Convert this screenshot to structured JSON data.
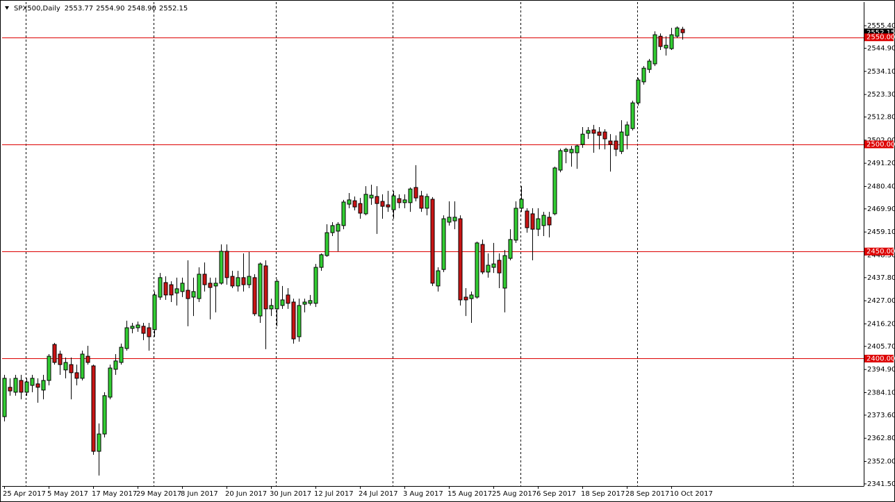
{
  "chart_data": {
    "type": "candlestick",
    "title": "SPX500,Daily",
    "ohlc_text": [
      "2553.77",
      "2554.90",
      "2548.90",
      "2552.15"
    ],
    "categories": [
      "25 Apr 2017",
      null,
      null,
      null,
      null,
      null,
      null,
      null,
      "5 May 2017",
      null,
      null,
      null,
      null,
      null,
      null,
      null,
      "17 May 2017",
      null,
      null,
      null,
      null,
      null,
      null,
      null,
      "29 May 2017",
      null,
      null,
      null,
      null,
      null,
      null,
      null,
      "8 Jun 2017",
      null,
      null,
      null,
      null,
      null,
      null,
      null,
      "20 Jun 2017",
      null,
      null,
      null,
      null,
      null,
      null,
      null,
      "30 Jun 2017",
      null,
      null,
      null,
      null,
      null,
      null,
      null,
      "12 Jul 2017",
      null,
      null,
      null,
      null,
      null,
      null,
      null,
      "24 Jul 2017",
      null,
      null,
      null,
      null,
      null,
      null,
      null,
      "3 Aug 2017",
      null,
      null,
      null,
      null,
      null,
      null,
      null,
      "15 Aug 2017",
      null,
      null,
      null,
      null,
      null,
      null,
      null,
      "25 Aug 2017",
      null,
      null,
      null,
      null,
      null,
      null,
      null,
      "6 Sep 2017",
      null,
      null,
      null,
      null,
      null,
      null,
      null,
      "18 Sep 2017",
      null,
      null,
      null,
      null,
      null,
      null,
      null,
      "28 Sep 2017",
      null,
      null,
      null,
      null,
      null,
      null,
      null,
      "10 Oct 2017",
      null,
      null
    ],
    "open": [
      2372.9,
      2386.6,
      2384.3,
      2389.8,
      2384.3,
      2387.5,
      2388.2,
      2385.3,
      2389.8,
      2406.6,
      2402.1,
      2394.7,
      2397.2,
      2393.4,
      2390.8,
      2401.1,
      2396.6,
      2356.7,
      2364.8,
      2382.0,
      2395.0,
      2398.2,
      2404.7,
      2414.1,
      2414.4,
      2415.1,
      2414.4,
      2413.5,
      2428.7,
      2435.5,
      2434.5,
      2430.6,
      2431.3,
      2431.9,
      2428.7,
      2428.0,
      2439.4,
      2435.2,
      2433.9,
      2435.2,
      2450.1,
      2438.4,
      2433.9,
      2437.8,
      2434.5,
      2437.8,
      2419.9,
      2443.3,
      2423.2,
      2423.2,
      2424.8,
      2429.7,
      2426.4,
      2410.2,
      2425.4,
      2425.8,
      2425.8,
      2442.6,
      2448.1,
      2458.8,
      2459.5,
      2462.1,
      2472.1,
      2473.7,
      2472.4,
      2467.6,
      2475.0,
      2475.7,
      2473.4,
      2471.8,
      2469.5,
      2474.7,
      2472.8,
      2472.8,
      2479.9,
      2476.0,
      2470.2,
      2474.4,
      2433.9,
      2441.6,
      2463.7,
      2464.3,
      2465.3,
      2428.7,
      2428.0,
      2428.7,
      2453.3,
      2440.4,
      2442.6,
      2445.9,
      2432.9,
      2446.8,
      2455.3,
      2470.2,
      2468.9,
      2467.6,
      2460.4,
      2462.1,
      2466.0,
      2467.6,
      2488.0,
      2496.7,
      2496.1,
      2496.1,
      2500.0,
      2505.2,
      2506.8,
      2505.8,
      2505.8,
      2501.6,
      2501.6,
      2496.7,
      2504.2,
      2507.4,
      2519.4,
      2529.2,
      2535.0,
      2537.6,
      2550.5,
      2545.0,
      2544.7,
      2550.5,
      2553.77
    ],
    "high": [
      2392.4,
      2390.8,
      2392.4,
      2392.4,
      2390.8,
      2392.4,
      2390.8,
      2392.4,
      2402.1,
      2407.3,
      2403.7,
      2400.5,
      2400.5,
      2397.2,
      2403.7,
      2406.0,
      2397.2,
      2369.7,
      2384.3,
      2397.2,
      2402.1,
      2407.0,
      2417.7,
      2416.7,
      2417.3,
      2416.7,
      2416.7,
      2431.3,
      2440.0,
      2438.4,
      2436.1,
      2437.8,
      2437.8,
      2445.9,
      2437.8,
      2442.6,
      2444.9,
      2437.8,
      2437.8,
      2453.3,
      2453.3,
      2441.0,
      2441.0,
      2449.1,
      2449.8,
      2439.4,
      2444.9,
      2445.9,
      2428.0,
      2437.1,
      2433.9,
      2432.9,
      2428.0,
      2428.0,
      2428.0,
      2429.7,
      2444.2,
      2449.1,
      2462.7,
      2463.7,
      2463.7,
      2474.1,
      2477.3,
      2475.7,
      2475.0,
      2480.5,
      2481.2,
      2480.5,
      2476.7,
      2478.3,
      2478.3,
      2476.7,
      2476.7,
      2479.9,
      2490.3,
      2478.3,
      2477.0,
      2475.4,
      2442.6,
      2466.9,
      2473.4,
      2473.4,
      2466.9,
      2432.9,
      2431.3,
      2454.6,
      2455.6,
      2449.1,
      2454.0,
      2449.1,
      2450.7,
      2460.4,
      2473.4,
      2480.5,
      2470.2,
      2470.2,
      2470.2,
      2468.5,
      2468.5,
      2489.6,
      2498.0,
      2498.4,
      2499.3,
      2500.0,
      2508.1,
      2508.1,
      2509.1,
      2508.1,
      2507.1,
      2504.8,
      2504.2,
      2511.3,
      2510.7,
      2520.4,
      2531.1,
      2536.6,
      2539.9,
      2552.8,
      2551.8,
      2550.5,
      2554.4,
      2555.1,
      2554.9
    ],
    "low": [
      2370.7,
      2382.7,
      2382.7,
      2381.0,
      2382.7,
      2384.3,
      2379.4,
      2381.0,
      2387.5,
      2397.2,
      2392.4,
      2390.8,
      2381.0,
      2387.5,
      2389.8,
      2397.2,
      2355.1,
      2345.4,
      2363.2,
      2381.0,
      2392.4,
      2397.2,
      2403.7,
      2411.8,
      2412.5,
      2408.6,
      2403.7,
      2410.2,
      2427.4,
      2427.4,
      2426.4,
      2424.8,
      2428.7,
      2415.1,
      2419.9,
      2426.4,
      2431.3,
      2418.3,
      2421.6,
      2434.5,
      2434.5,
      2432.9,
      2431.3,
      2431.3,
      2432.9,
      2419.9,
      2416.7,
      2404.4,
      2419.9,
      2415.1,
      2423.2,
      2423.2,
      2407.0,
      2407.9,
      2421.6,
      2424.8,
      2424.1,
      2441.0,
      2447.5,
      2457.2,
      2450.1,
      2460.4,
      2470.2,
      2469.2,
      2465.3,
      2466.9,
      2471.8,
      2458.2,
      2465.3,
      2468.5,
      2465.3,
      2470.2,
      2470.2,
      2468.5,
      2473.4,
      2468.5,
      2466.9,
      2433.9,
      2431.3,
      2440.4,
      2462.1,
      2460.4,
      2424.8,
      2419.9,
      2416.7,
      2428.0,
      2439.4,
      2437.8,
      2440.0,
      2432.9,
      2421.6,
      2445.9,
      2454.0,
      2468.5,
      2458.8,
      2445.9,
      2457.2,
      2457.2,
      2456.6,
      2466.9,
      2487.0,
      2491.2,
      2489.6,
      2488.6,
      2498.4,
      2502.6,
      2496.1,
      2497.7,
      2497.7,
      2487.3,
      2494.5,
      2495.5,
      2497.7,
      2506.5,
      2518.1,
      2527.9,
      2533.4,
      2536.6,
      2544.1,
      2541.5,
      2544.1,
      2549.6,
      2548.9
    ],
    "close": [
      2390.8,
      2384.9,
      2390.8,
      2384.3,
      2389.1,
      2390.8,
      2386.6,
      2389.8,
      2401.1,
      2398.2,
      2397.2,
      2398.2,
      2393.4,
      2390.8,
      2402.1,
      2398.2,
      2356.7,
      2364.8,
      2382.7,
      2395.6,
      2398.9,
      2405.3,
      2414.4,
      2415.1,
      2415.7,
      2411.8,
      2410.2,
      2429.7,
      2437.8,
      2429.7,
      2429.7,
      2432.6,
      2435.2,
      2428.0,
      2431.3,
      2439.4,
      2434.5,
      2433.2,
      2435.2,
      2450.1,
      2437.8,
      2433.9,
      2437.8,
      2434.5,
      2438.4,
      2420.9,
      2444.2,
      2423.2,
      2424.8,
      2436.1,
      2427.4,
      2425.8,
      2409.2,
      2424.8,
      2426.4,
      2427.1,
      2442.6,
      2448.5,
      2458.8,
      2462.1,
      2462.7,
      2473.1,
      2474.1,
      2470.8,
      2467.9,
      2476.7,
      2476.3,
      2472.4,
      2471.1,
      2470.8,
      2476.0,
      2472.8,
      2474.1,
      2479.2,
      2475.0,
      2470.2,
      2475.7,
      2435.2,
      2441.0,
      2465.3,
      2466.0,
      2466.0,
      2427.4,
      2427.4,
      2429.7,
      2454.0,
      2440.4,
      2443.6,
      2444.2,
      2440.0,
      2448.1,
      2455.6,
      2470.2,
      2474.4,
      2461.1,
      2460.4,
      2465.3,
      2466.9,
      2462.4,
      2489.0,
      2497.1,
      2497.7,
      2497.7,
      2499.3,
      2504.8,
      2506.5,
      2505.2,
      2504.2,
      2502.6,
      2500.0,
      2497.7,
      2505.8,
      2509.1,
      2519.4,
      2530.1,
      2535.6,
      2538.9,
      2551.2,
      2545.7,
      2546.3,
      2551.2,
      2554.4,
      2552.15
    ],
    "up_color": "#32cd32",
    "down_color": "#c81414",
    "ylim": [
      2340.5,
      2565.8
    ],
    "yticks": [
      {
        "value": 2555.4,
        "label": "2555.40"
      },
      {
        "value": 2544.9,
        "label": "2544.90"
      },
      {
        "value": 2534.1,
        "label": "2534.10"
      },
      {
        "value": 2523.3,
        "label": "2523.30"
      },
      {
        "value": 2512.8,
        "label": "2512.80"
      },
      {
        "value": 2502,
        "label": "2502.00"
      },
      {
        "value": 2491.2,
        "label": "2491.20"
      },
      {
        "value": 2480.4,
        "label": "2480.40"
      },
      {
        "value": 2469.9,
        "label": "2469.90"
      },
      {
        "value": 2459.1,
        "label": "2459.10"
      },
      {
        "value": 2448.3,
        "label": "2448.30"
      },
      {
        "value": 2437.8,
        "label": "2437.80"
      },
      {
        "value": 2427,
        "label": "2427.00"
      },
      {
        "value": 2416.2,
        "label": "2416.20"
      },
      {
        "value": 2405.7,
        "label": "2405.70"
      },
      {
        "value": 2394.9,
        "label": "2394.90"
      },
      {
        "value": 2384.1,
        "label": "2384.10"
      },
      {
        "value": 2373.6,
        "label": "2373.60"
      },
      {
        "value": 2362.8,
        "label": "2362.80"
      },
      {
        "value": 2352,
        "label": "2352.00"
      },
      {
        "value": 2341.5,
        "label": "2341.50"
      }
    ],
    "levels": [
      {
        "value": 2550,
        "label": "2550.00"
      },
      {
        "value": 2500,
        "label": "2500.00"
      },
      {
        "value": 2450,
        "label": "2450.00"
      },
      {
        "value": 2400,
        "label": "2400.00"
      }
    ],
    "level_color": "#dd0000",
    "last_price": {
      "value": 2552.15,
      "label": "2552.15"
    }
  }
}
